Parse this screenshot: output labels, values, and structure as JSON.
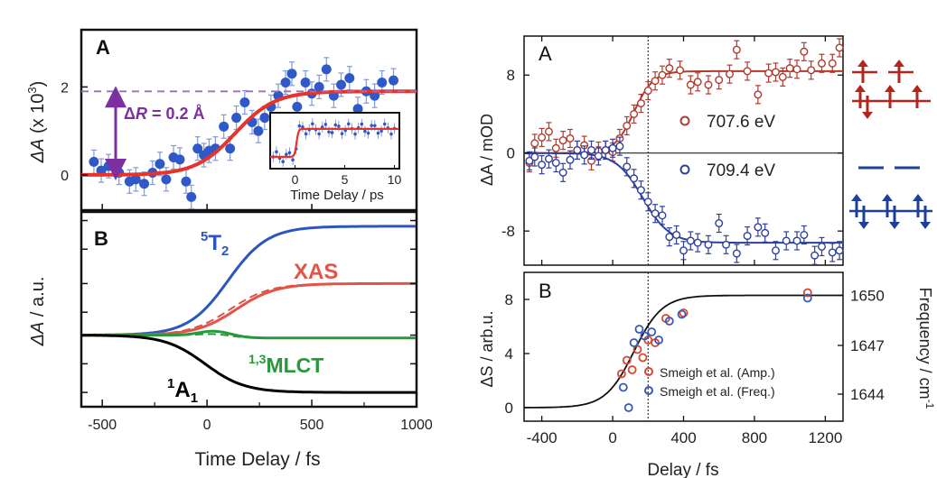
{
  "chart_data": [
    {
      "panel": "A",
      "type": "scatter",
      "title": "",
      "ylabel_prefix": "ΔA",
      "ylabel_suffix": " (x 10",
      "ylabel_exp": "3",
      "ylabel_close": ")",
      "ylim": [
        -0.8,
        3.3
      ],
      "xlim": [
        -600,
        1000
      ],
      "yticks": [
        0,
        2
      ],
      "dashed_level": 1.9,
      "annotation_prefix": "Δ",
      "annotation_var": "R",
      "annotation_suffix": " = 0.2 Å",
      "points": [
        {
          "x": -540,
          "y": 0.3
        },
        {
          "x": -505,
          "y": 0.1
        },
        {
          "x": -470,
          "y": 0.2
        },
        {
          "x": -420,
          "y": 0.05
        },
        {
          "x": -370,
          "y": -0.15
        },
        {
          "x": -340,
          "y": -0.1
        },
        {
          "x": -300,
          "y": -0.2
        },
        {
          "x": -260,
          "y": 0.05
        },
        {
          "x": -225,
          "y": 0.25
        },
        {
          "x": -195,
          "y": -0.1
        },
        {
          "x": -160,
          "y": 0.4
        },
        {
          "x": -130,
          "y": 0.35
        },
        {
          "x": -100,
          "y": -0.15
        },
        {
          "x": -75,
          "y": -0.5
        },
        {
          "x": -45,
          "y": 0.6
        },
        {
          "x": -15,
          "y": 0.45
        },
        {
          "x": 10,
          "y": 0.55
        },
        {
          "x": 40,
          "y": 0.6
        },
        {
          "x": 80,
          "y": 1.1
        },
        {
          "x": 110,
          "y": 0.6
        },
        {
          "x": 140,
          "y": 1.3
        },
        {
          "x": 180,
          "y": 1.65
        },
        {
          "x": 215,
          "y": 1.2
        },
        {
          "x": 245,
          "y": 1.0
        },
        {
          "x": 275,
          "y": 1.3
        },
        {
          "x": 305,
          "y": 1.55
        },
        {
          "x": 340,
          "y": 1.8
        },
        {
          "x": 375,
          "y": 2.1
        },
        {
          "x": 405,
          "y": 2.3
        },
        {
          "x": 430,
          "y": 1.55
        },
        {
          "x": 470,
          "y": 2.1
        },
        {
          "x": 500,
          "y": 1.85
        },
        {
          "x": 535,
          "y": 2.0
        },
        {
          "x": 570,
          "y": 2.4
        },
        {
          "x": 605,
          "y": 1.8
        },
        {
          "x": 640,
          "y": 2.05
        },
        {
          "x": 680,
          "y": 2.2
        },
        {
          "x": 720,
          "y": 1.5
        },
        {
          "x": 760,
          "y": 1.9
        },
        {
          "x": 800,
          "y": 1.8
        },
        {
          "x": 835,
          "y": 2.1
        },
        {
          "x": 890,
          "y": 2.15
        }
      ],
      "fit": {
        "t0": 135,
        "width": 95,
        "amplitude": 1.9
      },
      "inset": {
        "xlabel": "Time Delay / ps",
        "xticks": [
          0,
          5,
          10
        ],
        "xlim": [
          -2.5,
          10.5
        ]
      }
    },
    {
      "panel": "B",
      "type": "line",
      "ylabel_prefix": "ΔA",
      "ylabel_suffix": " / a.u.",
      "xlabel": "Time Delay / fs",
      "xlim": [
        -600,
        1000
      ],
      "xticks": [
        -500,
        0,
        500,
        1000
      ],
      "ylim": [
        -1.25,
        2.15
      ],
      "series_labels": [
        {
          "sup": "5",
          "main": "T",
          "sub": "2",
          "color": "#2b55c0"
        },
        {
          "sup": "",
          "main": "XAS",
          "sub": "",
          "color": "#e05548"
        },
        {
          "sup": "1,3",
          "main": "MLCT",
          "sub": "",
          "color": "#27993a"
        },
        {
          "sup": "1",
          "main": "A",
          "sub": "1",
          "color": "#000000"
        }
      ],
      "curves": [
        {
          "color": "#2b55c0",
          "final": 1.9,
          "mid": 100,
          "w": 95,
          "style": "solid"
        },
        {
          "color": "#e05548",
          "final": 0.9,
          "mid": 140,
          "w": 95,
          "style": "solid"
        },
        {
          "color": "#e05548",
          "final": 0.9,
          "mid": 110,
          "w": 95,
          "style": "dashed"
        },
        {
          "color": "#27993a",
          "final": -0.05,
          "mid": 0,
          "w": 60,
          "style": "solid",
          "pulse": 0.1
        },
        {
          "color": "#27993a",
          "final": -0.05,
          "mid": 0,
          "w": 60,
          "style": "dashed",
          "pulse": 0.05
        },
        {
          "color": "#000000",
          "final": -1.0,
          "mid": -10,
          "w": 95,
          "style": "solid"
        }
      ]
    },
    {
      "panel": "A",
      "type": "scatter",
      "ylabel": "ΔA / mOD",
      "xlim": [
        -500,
        1300
      ],
      "ylim": [
        -11.5,
        12
      ],
      "yticks": [
        8,
        0,
        -8
      ],
      "vline_x": 200,
      "legend": [
        {
          "name": "707.6 eV",
          "color": "#b03a2e"
        },
        {
          "name": "709.4 eV",
          "color": "#2e3f9e"
        }
      ],
      "series": [
        {
          "name": "707.6 eV",
          "color": "#b03a2e",
          "fit": {
            "t0": 120,
            "w": 55,
            "amp": 8.4
          },
          "points": [
            {
              "x": -470,
              "y": -1
            },
            {
              "x": -440,
              "y": 1
            },
            {
              "x": -400,
              "y": 1.6
            },
            {
              "x": -360,
              "y": 2.2
            },
            {
              "x": -320,
              "y": 0.5
            },
            {
              "x": -280,
              "y": 1.3
            },
            {
              "x": -240,
              "y": 1.5
            },
            {
              "x": -200,
              "y": 0.3
            },
            {
              "x": -160,
              "y": 0.8
            },
            {
              "x": -120,
              "y": -0.8
            },
            {
              "x": -80,
              "y": 0.2
            },
            {
              "x": -40,
              "y": 0.3
            },
            {
              "x": 0,
              "y": 0.1
            },
            {
              "x": 40,
              "y": 1.5
            },
            {
              "x": 80,
              "y": 2.8
            },
            {
              "x": 120,
              "y": 4.0
            },
            {
              "x": 160,
              "y": 5.1
            },
            {
              "x": 200,
              "y": 6.4
            },
            {
              "x": 240,
              "y": 7.4
            },
            {
              "x": 280,
              "y": 8.0
            },
            {
              "x": 320,
              "y": 8.7
            },
            {
              "x": 380,
              "y": 8.5
            },
            {
              "x": 440,
              "y": 7.0
            },
            {
              "x": 480,
              "y": 7.3
            },
            {
              "x": 540,
              "y": 7.0
            },
            {
              "x": 600,
              "y": 7.5
            },
            {
              "x": 660,
              "y": 8.1
            },
            {
              "x": 700,
              "y": 10.6
            },
            {
              "x": 760,
              "y": 8.4
            },
            {
              "x": 820,
              "y": 6.0
            },
            {
              "x": 880,
              "y": 8.2
            },
            {
              "x": 920,
              "y": 8.3
            },
            {
              "x": 960,
              "y": 7.8
            },
            {
              "x": 1000,
              "y": 8.7
            },
            {
              "x": 1040,
              "y": 8.6
            },
            {
              "x": 1080,
              "y": 10.4
            },
            {
              "x": 1120,
              "y": 8.5
            },
            {
              "x": 1180,
              "y": 9.2
            },
            {
              "x": 1240,
              "y": 9.2
            },
            {
              "x": 1280,
              "y": 10.8
            }
          ]
        },
        {
          "name": "709.4 eV",
          "color": "#2e3f9e",
          "fit": {
            "t0": 170,
            "w": 75,
            "amp": -9.2
          },
          "points": [
            {
              "x": -470,
              "y": -0.8
            },
            {
              "x": -440,
              "y": -0.4
            },
            {
              "x": -400,
              "y": -1.2
            },
            {
              "x": -360,
              "y": -0.6
            },
            {
              "x": -320,
              "y": -1.0
            },
            {
              "x": -280,
              "y": -2.0
            },
            {
              "x": -240,
              "y": -0.7
            },
            {
              "x": -200,
              "y": 0.3
            },
            {
              "x": -160,
              "y": -0.2
            },
            {
              "x": -120,
              "y": 0.3
            },
            {
              "x": -80,
              "y": -0.3
            },
            {
              "x": -40,
              "y": 0.3
            },
            {
              "x": 0,
              "y": 0.5
            },
            {
              "x": 40,
              "y": 0.7
            },
            {
              "x": 80,
              "y": -1.4
            },
            {
              "x": 120,
              "y": -2.6
            },
            {
              "x": 160,
              "y": -3.8
            },
            {
              "x": 200,
              "y": -5.0
            },
            {
              "x": 240,
              "y": -6.2
            },
            {
              "x": 280,
              "y": -6.4
            },
            {
              "x": 320,
              "y": -8.6
            },
            {
              "x": 360,
              "y": -8.4
            },
            {
              "x": 400,
              "y": -10.0
            },
            {
              "x": 440,
              "y": -9.0
            },
            {
              "x": 480,
              "y": -9.2
            },
            {
              "x": 540,
              "y": -9.4
            },
            {
              "x": 600,
              "y": -7.2
            },
            {
              "x": 640,
              "y": -9.4
            },
            {
              "x": 700,
              "y": -10.3
            },
            {
              "x": 760,
              "y": -8.5
            },
            {
              "x": 820,
              "y": -7.6
            },
            {
              "x": 860,
              "y": -8.2
            },
            {
              "x": 920,
              "y": -10.0
            },
            {
              "x": 980,
              "y": -9.0
            },
            {
              "x": 1040,
              "y": -9.0
            },
            {
              "x": 1080,
              "y": -8.4
            },
            {
              "x": 1140,
              "y": -10.5
            },
            {
              "x": 1180,
              "y": -9.6
            },
            {
              "x": 1240,
              "y": -10.2
            },
            {
              "x": 1280,
              "y": -10.0
            }
          ]
        }
      ]
    },
    {
      "panel": "B",
      "type": "scatter",
      "ylabel": "ΔS / arb.u.",
      "y2label": "Frequency / cm",
      "y2label_exp": "-1",
      "xlabel": "Delay / fs",
      "xlim": [
        -500,
        1300
      ],
      "xticks": [
        -400,
        0,
        400,
        800,
        1200
      ],
      "ylim": [
        -1,
        10
      ],
      "yticks": [
        0,
        4,
        8
      ],
      "y2ticks": [
        {
          "label": "1650",
          "y": 8.3
        },
        {
          "label": "1647",
          "y": 4.6
        },
        {
          "label": "1644",
          "y": 1.0
        }
      ],
      "vline_x": 200,
      "fit": {
        "t0": 120,
        "w": 80,
        "amp": 8.3
      },
      "legend": [
        {
          "name": "Smeigh et al. (Amp.)",
          "color": "#d9442f"
        },
        {
          "name": "Smeigh et al. (Freq.)",
          "color": "#3a57b8"
        }
      ],
      "series": [
        {
          "name": "Smeigh et al. (Amp.)",
          "color": "#d9442f",
          "points": [
            {
              "x": 50,
              "y": 2.5
            },
            {
              "x": 80,
              "y": 3.5
            },
            {
              "x": 110,
              "y": 2.8
            },
            {
              "x": 140,
              "y": 4.3
            },
            {
              "x": 170,
              "y": 3.7
            },
            {
              "x": 200,
              "y": 5.0
            },
            {
              "x": 240,
              "y": 4.8
            },
            {
              "x": 300,
              "y": 6.6
            },
            {
              "x": 400,
              "y": 7.0
            },
            {
              "x": 1100,
              "y": 8.5
            }
          ]
        },
        {
          "name": "Smeigh et al. (Freq.)",
          "color": "#3a57b8",
          "points": [
            {
              "x": 60,
              "y": 1.5
            },
            {
              "x": 90,
              "y": 0.0
            },
            {
              "x": 120,
              "y": 4.8
            },
            {
              "x": 150,
              "y": 5.8
            },
            {
              "x": 180,
              "y": 5.3
            },
            {
              "x": 220,
              "y": 5.6
            },
            {
              "x": 260,
              "y": 5.0
            },
            {
              "x": 320,
              "y": 6.4
            },
            {
              "x": 390,
              "y": 6.9
            },
            {
              "x": 1100,
              "y": 8.1
            }
          ]
        }
      ]
    }
  ],
  "colors": {
    "fit_red": "#e8322a",
    "point_blue": "#2f58c8",
    "dashed_purple": "#9b6fb8",
    "arrow_purple": "#7b2fa0",
    "spin_red": "#b3261e",
    "spin_blue": "#1f3f9a"
  }
}
